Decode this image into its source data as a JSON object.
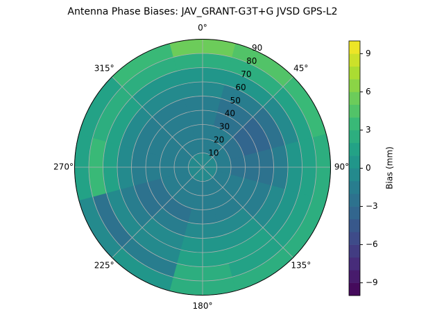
{
  "chart_data": {
    "type": "polar-contour",
    "title": "Antenna Phase Biases: JAV_GRANT-G3T+G JVSD GPS-L2",
    "colorbar_label": "Bias (mm)",
    "colormap": "viridis",
    "clim": [
      -10,
      10
    ],
    "level_step": 1,
    "cticks": [
      {
        "value": -9,
        "label": "−9"
      },
      {
        "value": -6,
        "label": "−6"
      },
      {
        "value": -3,
        "label": "−3"
      },
      0,
      3,
      6,
      9
    ],
    "rlim": [
      0,
      90
    ],
    "rticks": [
      10,
      20,
      30,
      40,
      50,
      60,
      70,
      80,
      90
    ],
    "thetaticks": [
      {
        "value": 0,
        "label": "0°"
      },
      {
        "value": 45,
        "label": "45°"
      },
      {
        "value": 90,
        "label": "90°"
      },
      {
        "value": 135,
        "label": "135°"
      },
      {
        "value": 180,
        "label": "180°"
      },
      {
        "value": 225,
        "label": "225°"
      },
      {
        "value": 270,
        "label": "270°"
      },
      {
        "value": 315,
        "label": "315°"
      }
    ],
    "grid": true,
    "azimuths": [
      0,
      30,
      60,
      90,
      120,
      150,
      180,
      210,
      240,
      270,
      300,
      330
    ],
    "zeniths": [
      5,
      15,
      25,
      35,
      45,
      55,
      65,
      75,
      85
    ],
    "values": [
      [
        -1,
        -2,
        -2,
        -2,
        -2,
        -1,
        0,
        2,
        5
      ],
      [
        -1,
        -2,
        -2,
        -3,
        -3,
        -2,
        0,
        2,
        4
      ],
      [
        -1,
        -2,
        -3,
        -4,
        -4,
        -3,
        -1,
        1,
        3
      ],
      [
        -1,
        -2,
        -3,
        -3,
        -3,
        -2,
        0,
        1,
        2
      ],
      [
        -1,
        -2,
        -2,
        -2,
        -2,
        -1,
        0,
        1,
        2
      ],
      [
        -1,
        -2,
        -2,
        -2,
        -1,
        0,
        1,
        1,
        2
      ],
      [
        -1,
        -2,
        -2,
        -2,
        -1,
        0,
        1,
        2,
        2
      ],
      [
        -1,
        -2,
        -2,
        -3,
        -2,
        -1,
        -1,
        -2,
        0
      ],
      [
        -1,
        -2,
        -2,
        -3,
        -3,
        -2,
        -1,
        -3,
        -1
      ],
      [
        -1,
        -2,
        -2,
        -2,
        -2,
        -1,
        1,
        3,
        1
      ],
      [
        -1,
        -2,
        -2,
        -2,
        -2,
        -1,
        1,
        2,
        1
      ],
      [
        -1,
        -2,
        -2,
        -2,
        -2,
        -1,
        0,
        2,
        3
      ]
    ]
  }
}
